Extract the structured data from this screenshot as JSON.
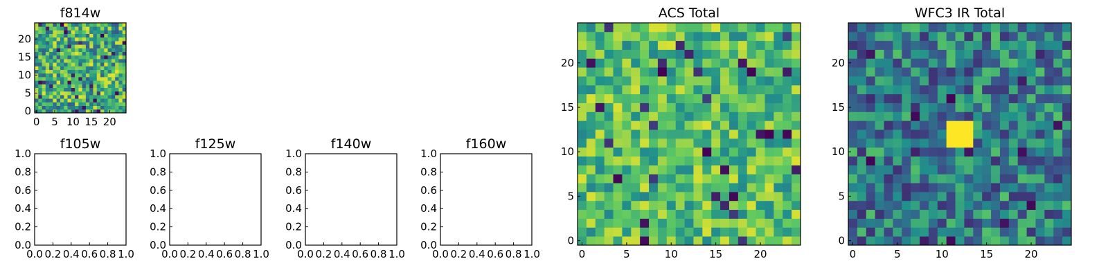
{
  "colormap": [
    "#440154",
    "#3b528b",
    "#21918c",
    "#5ec962",
    "#fde725"
  ],
  "chart_data": [
    {
      "id": "f814w",
      "type": "heatmap",
      "title": "f814w",
      "size": 25,
      "x_ticks": [
        "0",
        "5",
        "10",
        "15",
        "20"
      ],
      "y_ticks": [
        "0",
        "5",
        "10",
        "15",
        "20"
      ],
      "levels": [
        0.28,
        0.96
      ],
      "seed": 11
    },
    {
      "id": "f105w",
      "type": "heatmap",
      "title": "f105w",
      "empty": true,
      "x_ticks": [
        "0.0",
        "0.2",
        "0.4",
        "0.6",
        "0.8",
        "1.0"
      ],
      "y_ticks": [
        "0.0",
        "0.2",
        "0.4",
        "0.6",
        "0.8",
        "1.0"
      ]
    },
    {
      "id": "f125w",
      "type": "heatmap",
      "title": "f125w",
      "empty": true,
      "x_ticks": [
        "0.0",
        "0.2",
        "0.4",
        "0.6",
        "0.8",
        "1.0"
      ],
      "y_ticks": [
        "0.0",
        "0.2",
        "0.4",
        "0.6",
        "0.8",
        "1.0"
      ]
    },
    {
      "id": "f140w",
      "type": "heatmap",
      "title": "f140w",
      "empty": true,
      "x_ticks": [
        "0.0",
        "0.2",
        "0.4",
        "0.6",
        "0.8",
        "1.0"
      ],
      "y_ticks": [
        "0.0",
        "0.2",
        "0.4",
        "0.6",
        "0.8",
        "1.0"
      ]
    },
    {
      "id": "f160w",
      "type": "heatmap",
      "title": "f160w",
      "empty": true,
      "x_ticks": [
        "0.0",
        "0.2",
        "0.4",
        "0.6",
        "0.8",
        "1.0"
      ],
      "y_ticks": [
        "0.0",
        "0.2",
        "0.4",
        "0.6",
        "0.8",
        "1.0"
      ]
    },
    {
      "id": "acs-total",
      "type": "heatmap",
      "title": "ACS Total",
      "size": 25,
      "x_ticks": [
        "0",
        "5",
        "10",
        "15",
        "20"
      ],
      "y_ticks": [
        "0",
        "5",
        "10",
        "15",
        "20"
      ],
      "levels": [
        0.45,
        0.95
      ],
      "seed": 29
    },
    {
      "id": "wfc3-ir-total",
      "type": "heatmap",
      "title": "WFC3 IR Total",
      "size": 25,
      "x_ticks": [
        "0",
        "5",
        "10",
        "15",
        "20"
      ],
      "y_ticks": [
        "0",
        "5",
        "10",
        "15",
        "20"
      ],
      "levels": [
        0.15,
        0.72
      ],
      "seed": 47,
      "hotspot": {
        "x": [
          11,
          13
        ],
        "y": [
          11,
          13
        ],
        "value": 1.0
      }
    }
  ]
}
